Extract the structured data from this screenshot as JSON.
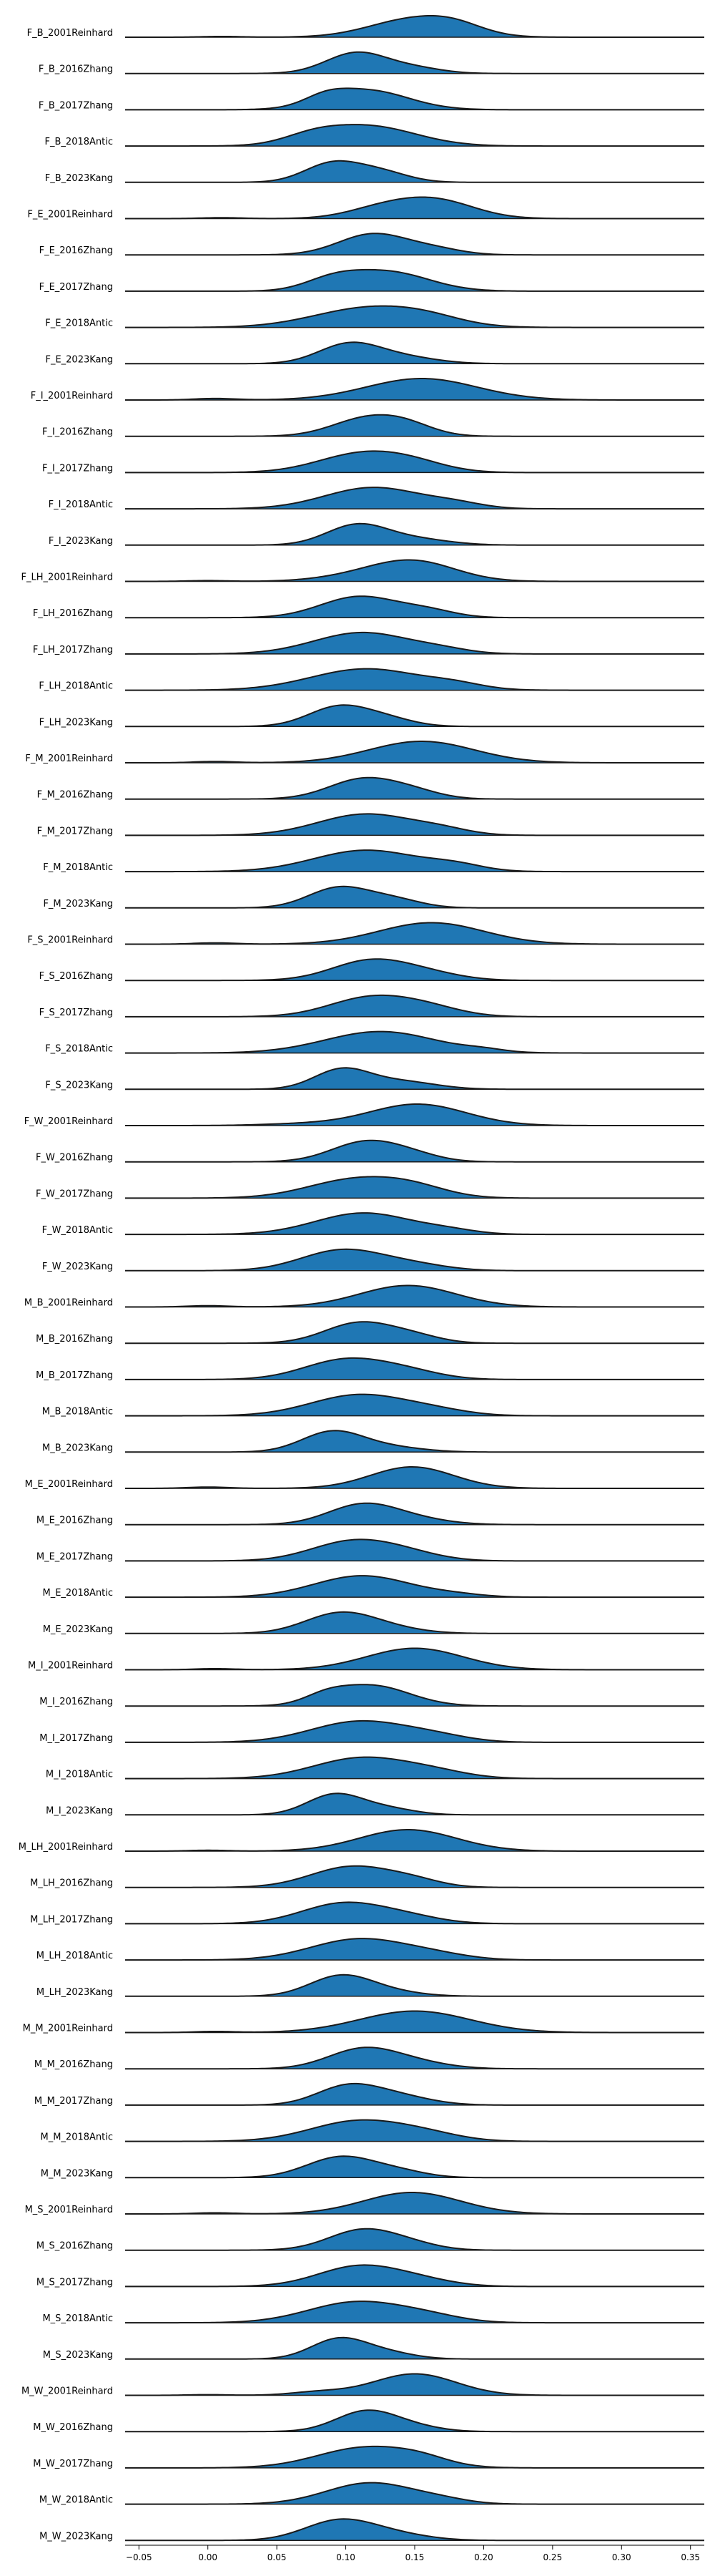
{
  "chart_data": {
    "type": "area",
    "subtype": "ridgeline",
    "title": "",
    "xlabel": "",
    "ylabel": "",
    "xlim": [
      -0.06,
      0.36
    ],
    "x_ticks": [
      -0.05,
      0.0,
      0.05,
      0.1,
      0.15,
      0.2,
      0.25,
      0.3,
      0.35
    ],
    "x_tick_labels": [
      "−0.05",
      "0.00",
      "0.05",
      "0.10",
      "0.15",
      "0.20",
      "0.25",
      "0.30",
      "0.35"
    ],
    "grid": false,
    "legend": "none",
    "fill_color": "#1f77b4",
    "line_color": "#1a1a1a",
    "series": [
      {
        "label": "F_B_2001Reinhard",
        "components": [
          [
            0.15,
            0.032,
            1.0
          ],
          [
            0.18,
            0.02,
            0.35
          ],
          [
            0.01,
            0.015,
            0.04
          ]
        ]
      },
      {
        "label": "F_B_2016Zhang",
        "components": [
          [
            0.108,
            0.022,
            1.0
          ],
          [
            0.15,
            0.02,
            0.25
          ]
        ]
      },
      {
        "label": "F_B_2017Zhang",
        "components": [
          [
            0.115,
            0.03,
            1.0
          ],
          [
            0.085,
            0.015,
            0.35
          ]
        ]
      },
      {
        "label": "F_B_2018Antic",
        "components": [
          [
            0.115,
            0.035,
            1.0
          ],
          [
            0.075,
            0.02,
            0.3
          ]
        ]
      },
      {
        "label": "F_B_2023Kang",
        "components": [
          [
            0.09,
            0.02,
            1.0
          ],
          [
            0.125,
            0.02,
            0.55
          ]
        ]
      },
      {
        "label": "F_E_2001Reinhard",
        "components": [
          [
            0.165,
            0.028,
            1.0
          ],
          [
            0.125,
            0.025,
            0.5
          ],
          [
            0.01,
            0.015,
            0.05
          ]
        ]
      },
      {
        "label": "F_E_2016Zhang",
        "components": [
          [
            0.12,
            0.025,
            1.0
          ],
          [
            0.165,
            0.02,
            0.25
          ]
        ]
      },
      {
        "label": "F_E_2017Zhang",
        "components": [
          [
            0.13,
            0.03,
            1.0
          ],
          [
            0.09,
            0.02,
            0.5
          ]
        ]
      },
      {
        "label": "F_E_2018Antic",
        "components": [
          [
            0.118,
            0.04,
            1.0
          ],
          [
            0.16,
            0.025,
            0.25
          ]
        ]
      },
      {
        "label": "F_E_2023Kang",
        "components": [
          [
            0.102,
            0.022,
            1.0
          ],
          [
            0.14,
            0.025,
            0.35
          ]
        ]
      },
      {
        "label": "F_I_2001Reinhard",
        "components": [
          [
            0.155,
            0.04,
            1.0
          ],
          [
            0.005,
            0.015,
            0.07
          ]
        ]
      },
      {
        "label": "F_I_2016Zhang",
        "components": [
          [
            0.115,
            0.025,
            1.0
          ],
          [
            0.145,
            0.02,
            0.5
          ]
        ]
      },
      {
        "label": "F_I_2017Zhang",
        "components": [
          [
            0.112,
            0.032,
            1.0
          ],
          [
            0.15,
            0.025,
            0.35
          ]
        ]
      },
      {
        "label": "F_I_2018Antic",
        "components": [
          [
            0.12,
            0.035,
            1.0
          ],
          [
            0.18,
            0.02,
            0.2
          ]
        ]
      },
      {
        "label": "F_I_2023Kang",
        "components": [
          [
            0.108,
            0.022,
            1.0
          ],
          [
            0.15,
            0.025,
            0.3
          ]
        ]
      },
      {
        "label": "F_LH_2001Reinhard",
        "components": [
          [
            0.15,
            0.03,
            1.0
          ],
          [
            0.11,
            0.03,
            0.25
          ],
          [
            0.0,
            0.015,
            0.04
          ]
        ]
      },
      {
        "label": "F_LH_2016Zhang",
        "components": [
          [
            0.11,
            0.028,
            1.0
          ],
          [
            0.16,
            0.02,
            0.3
          ]
        ]
      },
      {
        "label": "F_LH_2017Zhang",
        "components": [
          [
            0.112,
            0.035,
            1.0
          ],
          [
            0.17,
            0.02,
            0.15
          ]
        ]
      },
      {
        "label": "F_LH_2018Antic",
        "components": [
          [
            0.115,
            0.04,
            1.0
          ],
          [
            0.18,
            0.02,
            0.2
          ]
        ]
      },
      {
        "label": "F_LH_2023Kang",
        "components": [
          [
            0.095,
            0.022,
            1.0
          ],
          [
            0.13,
            0.02,
            0.35
          ]
        ]
      },
      {
        "label": "F_M_2001Reinhard",
        "components": [
          [
            0.155,
            0.038,
            1.0
          ],
          [
            0.005,
            0.015,
            0.06
          ]
        ]
      },
      {
        "label": "F_M_2016Zhang",
        "components": [
          [
            0.113,
            0.025,
            1.0
          ],
          [
            0.15,
            0.02,
            0.3
          ]
        ]
      },
      {
        "label": "F_M_2017Zhang",
        "components": [
          [
            0.115,
            0.035,
            1.0
          ],
          [
            0.17,
            0.02,
            0.2
          ]
        ]
      },
      {
        "label": "F_M_2018Antic",
        "components": [
          [
            0.115,
            0.038,
            1.0
          ],
          [
            0.18,
            0.02,
            0.25
          ]
        ]
      },
      {
        "label": "F_M_2023Kang",
        "components": [
          [
            0.095,
            0.022,
            1.0
          ],
          [
            0.135,
            0.02,
            0.4
          ]
        ]
      },
      {
        "label": "F_S_2001Reinhard",
        "components": [
          [
            0.162,
            0.038,
            1.0
          ],
          [
            0.005,
            0.015,
            0.06
          ]
        ]
      },
      {
        "label": "F_S_2016Zhang",
        "components": [
          [
            0.118,
            0.028,
            1.0
          ],
          [
            0.16,
            0.025,
            0.3
          ]
        ]
      },
      {
        "label": "F_S_2017Zhang",
        "components": [
          [
            0.118,
            0.03,
            1.0
          ],
          [
            0.16,
            0.025,
            0.4
          ]
        ]
      },
      {
        "label": "F_S_2018Antic",
        "components": [
          [
            0.125,
            0.04,
            1.0
          ],
          [
            0.2,
            0.015,
            0.1
          ]
        ]
      },
      {
        "label": "F_S_2023Kang",
        "components": [
          [
            0.097,
            0.02,
            1.0
          ],
          [
            0.14,
            0.025,
            0.4
          ]
        ]
      },
      {
        "label": "F_W_2001Reinhard",
        "components": [
          [
            0.152,
            0.035,
            1.0
          ],
          [
            0.07,
            0.03,
            0.08
          ]
        ]
      },
      {
        "label": "F_W_2016Zhang",
        "components": [
          [
            0.115,
            0.025,
            1.0
          ],
          [
            0.15,
            0.02,
            0.25
          ]
        ]
      },
      {
        "label": "F_W_2017Zhang",
        "components": [
          [
            0.108,
            0.035,
            1.0
          ],
          [
            0.15,
            0.025,
            0.4
          ]
        ]
      },
      {
        "label": "F_W_2018Antic",
        "components": [
          [
            0.113,
            0.035,
            1.0
          ],
          [
            0.175,
            0.02,
            0.15
          ]
        ]
      },
      {
        "label": "F_W_2023Kang",
        "components": [
          [
            0.098,
            0.03,
            1.0
          ],
          [
            0.15,
            0.025,
            0.25
          ]
        ]
      },
      {
        "label": "M_B_2001Reinhard",
        "components": [
          [
            0.145,
            0.035,
            1.0
          ],
          [
            0.0,
            0.015,
            0.06
          ]
        ]
      },
      {
        "label": "M_B_2016Zhang",
        "components": [
          [
            0.11,
            0.025,
            1.0
          ],
          [
            0.15,
            0.02,
            0.3
          ]
        ]
      },
      {
        "label": "M_B_2017Zhang",
        "components": [
          [
            0.1,
            0.03,
            1.0
          ],
          [
            0.145,
            0.025,
            0.35
          ]
        ]
      },
      {
        "label": "M_B_2018Antic",
        "components": [
          [
            0.11,
            0.035,
            1.0
          ],
          [
            0.165,
            0.025,
            0.2
          ]
        ]
      },
      {
        "label": "M_B_2023Kang",
        "components": [
          [
            0.09,
            0.022,
            1.0
          ],
          [
            0.13,
            0.025,
            0.25
          ]
        ]
      },
      {
        "label": "M_E_2001Reinhard",
        "components": [
          [
            0.148,
            0.03,
            1.0
          ],
          [
            0.0,
            0.015,
            0.06
          ]
        ]
      },
      {
        "label": "M_E_2016Zhang",
        "components": [
          [
            0.112,
            0.025,
            1.0
          ],
          [
            0.15,
            0.025,
            0.25
          ]
        ]
      },
      {
        "label": "M_E_2017Zhang",
        "components": [
          [
            0.105,
            0.03,
            1.0
          ],
          [
            0.145,
            0.025,
            0.3
          ]
        ]
      },
      {
        "label": "M_E_2018Antic",
        "components": [
          [
            0.112,
            0.035,
            1.0
          ],
          [
            0.18,
            0.02,
            0.1
          ]
        ]
      },
      {
        "label": "M_E_2023Kang",
        "components": [
          [
            0.095,
            0.025,
            1.0
          ],
          [
            0.13,
            0.025,
            0.25
          ]
        ]
      },
      {
        "label": "M_I_2001Reinhard",
        "components": [
          [
            0.15,
            0.035,
            1.0
          ],
          [
            0.005,
            0.015,
            0.05
          ]
        ]
      },
      {
        "label": "M_I_2016Zhang",
        "components": [
          [
            0.118,
            0.028,
            1.0
          ],
          [
            0.085,
            0.015,
            0.3
          ]
        ]
      },
      {
        "label": "M_I_2017Zhang",
        "components": [
          [
            0.11,
            0.035,
            1.0
          ],
          [
            0.165,
            0.025,
            0.25
          ]
        ]
      },
      {
        "label": "M_I_2018Antic",
        "components": [
          [
            0.112,
            0.035,
            1.0
          ],
          [
            0.165,
            0.025,
            0.25
          ]
        ]
      },
      {
        "label": "M_I_2023Kang",
        "components": [
          [
            0.092,
            0.02,
            1.0
          ],
          [
            0.13,
            0.02,
            0.3
          ]
        ]
      },
      {
        "label": "M_LH_2001Reinhard",
        "components": [
          [
            0.145,
            0.035,
            1.0
          ],
          [
            0.0,
            0.015,
            0.04
          ]
        ]
      },
      {
        "label": "M_LH_2016Zhang",
        "components": [
          [
            0.105,
            0.03,
            1.0
          ],
          [
            0.15,
            0.02,
            0.25
          ]
        ]
      },
      {
        "label": "M_LH_2017Zhang",
        "components": [
          [
            0.098,
            0.03,
            1.0
          ],
          [
            0.145,
            0.025,
            0.3
          ]
        ]
      },
      {
        "label": "M_LH_2018Antic",
        "components": [
          [
            0.11,
            0.035,
            1.0
          ],
          [
            0.165,
            0.025,
            0.2
          ]
        ]
      },
      {
        "label": "M_LH_2023Kang",
        "components": [
          [
            0.095,
            0.022,
            1.0
          ],
          [
            0.125,
            0.025,
            0.3
          ]
        ]
      },
      {
        "label": "M_M_2001Reinhard",
        "components": [
          [
            0.15,
            0.04,
            1.0
          ],
          [
            0.005,
            0.015,
            0.05
          ]
        ]
      },
      {
        "label": "M_M_2016Zhang",
        "components": [
          [
            0.112,
            0.025,
            1.0
          ],
          [
            0.15,
            0.025,
            0.3
          ]
        ]
      },
      {
        "label": "M_M_2017Zhang",
        "components": [
          [
            0.1,
            0.022,
            1.0
          ],
          [
            0.135,
            0.025,
            0.55
          ]
        ]
      },
      {
        "label": "M_M_2018Antic",
        "components": [
          [
            0.11,
            0.035,
            1.0
          ],
          [
            0.16,
            0.025,
            0.25
          ]
        ]
      },
      {
        "label": "M_M_2023Kang",
        "components": [
          [
            0.097,
            0.025,
            1.0
          ],
          [
            0.14,
            0.02,
            0.25
          ]
        ]
      },
      {
        "label": "M_S_2001Reinhard",
        "components": [
          [
            0.148,
            0.035,
            1.0
          ],
          [
            0.005,
            0.015,
            0.05
          ]
        ]
      },
      {
        "label": "M_S_2016Zhang",
        "components": [
          [
            0.113,
            0.025,
            1.0
          ],
          [
            0.15,
            0.02,
            0.2
          ]
        ]
      },
      {
        "label": "M_S_2017Zhang",
        "components": [
          [
            0.11,
            0.03,
            1.0
          ],
          [
            0.155,
            0.025,
            0.25
          ]
        ]
      },
      {
        "label": "M_S_2018Antic",
        "components": [
          [
            0.108,
            0.035,
            1.0
          ],
          [
            0.16,
            0.025,
            0.25
          ]
        ]
      },
      {
        "label": "M_S_2023Kang",
        "components": [
          [
            0.095,
            0.02,
            1.0
          ],
          [
            0.13,
            0.02,
            0.3
          ]
        ]
      },
      {
        "label": "M_W_2001Reinhard",
        "components": [
          [
            0.15,
            0.03,
            1.0
          ],
          [
            0.08,
            0.02,
            0.15
          ],
          [
            0.0,
            0.015,
            0.03
          ]
        ]
      },
      {
        "label": "M_W_2016Zhang",
        "components": [
          [
            0.115,
            0.022,
            1.0
          ],
          [
            0.15,
            0.02,
            0.2
          ]
        ]
      },
      {
        "label": "M_W_2017Zhang",
        "components": [
          [
            0.115,
            0.035,
            1.0
          ],
          [
            0.155,
            0.02,
            0.25
          ]
        ]
      },
      {
        "label": "M_W_2018Antic",
        "components": [
          [
            0.118,
            0.032,
            1.0
          ],
          [
            0.17,
            0.02,
            0.15
          ]
        ]
      },
      {
        "label": "M_W_2023Kang",
        "components": [
          [
            0.095,
            0.025,
            1.0
          ],
          [
            0.135,
            0.025,
            0.3
          ]
        ]
      }
    ]
  }
}
